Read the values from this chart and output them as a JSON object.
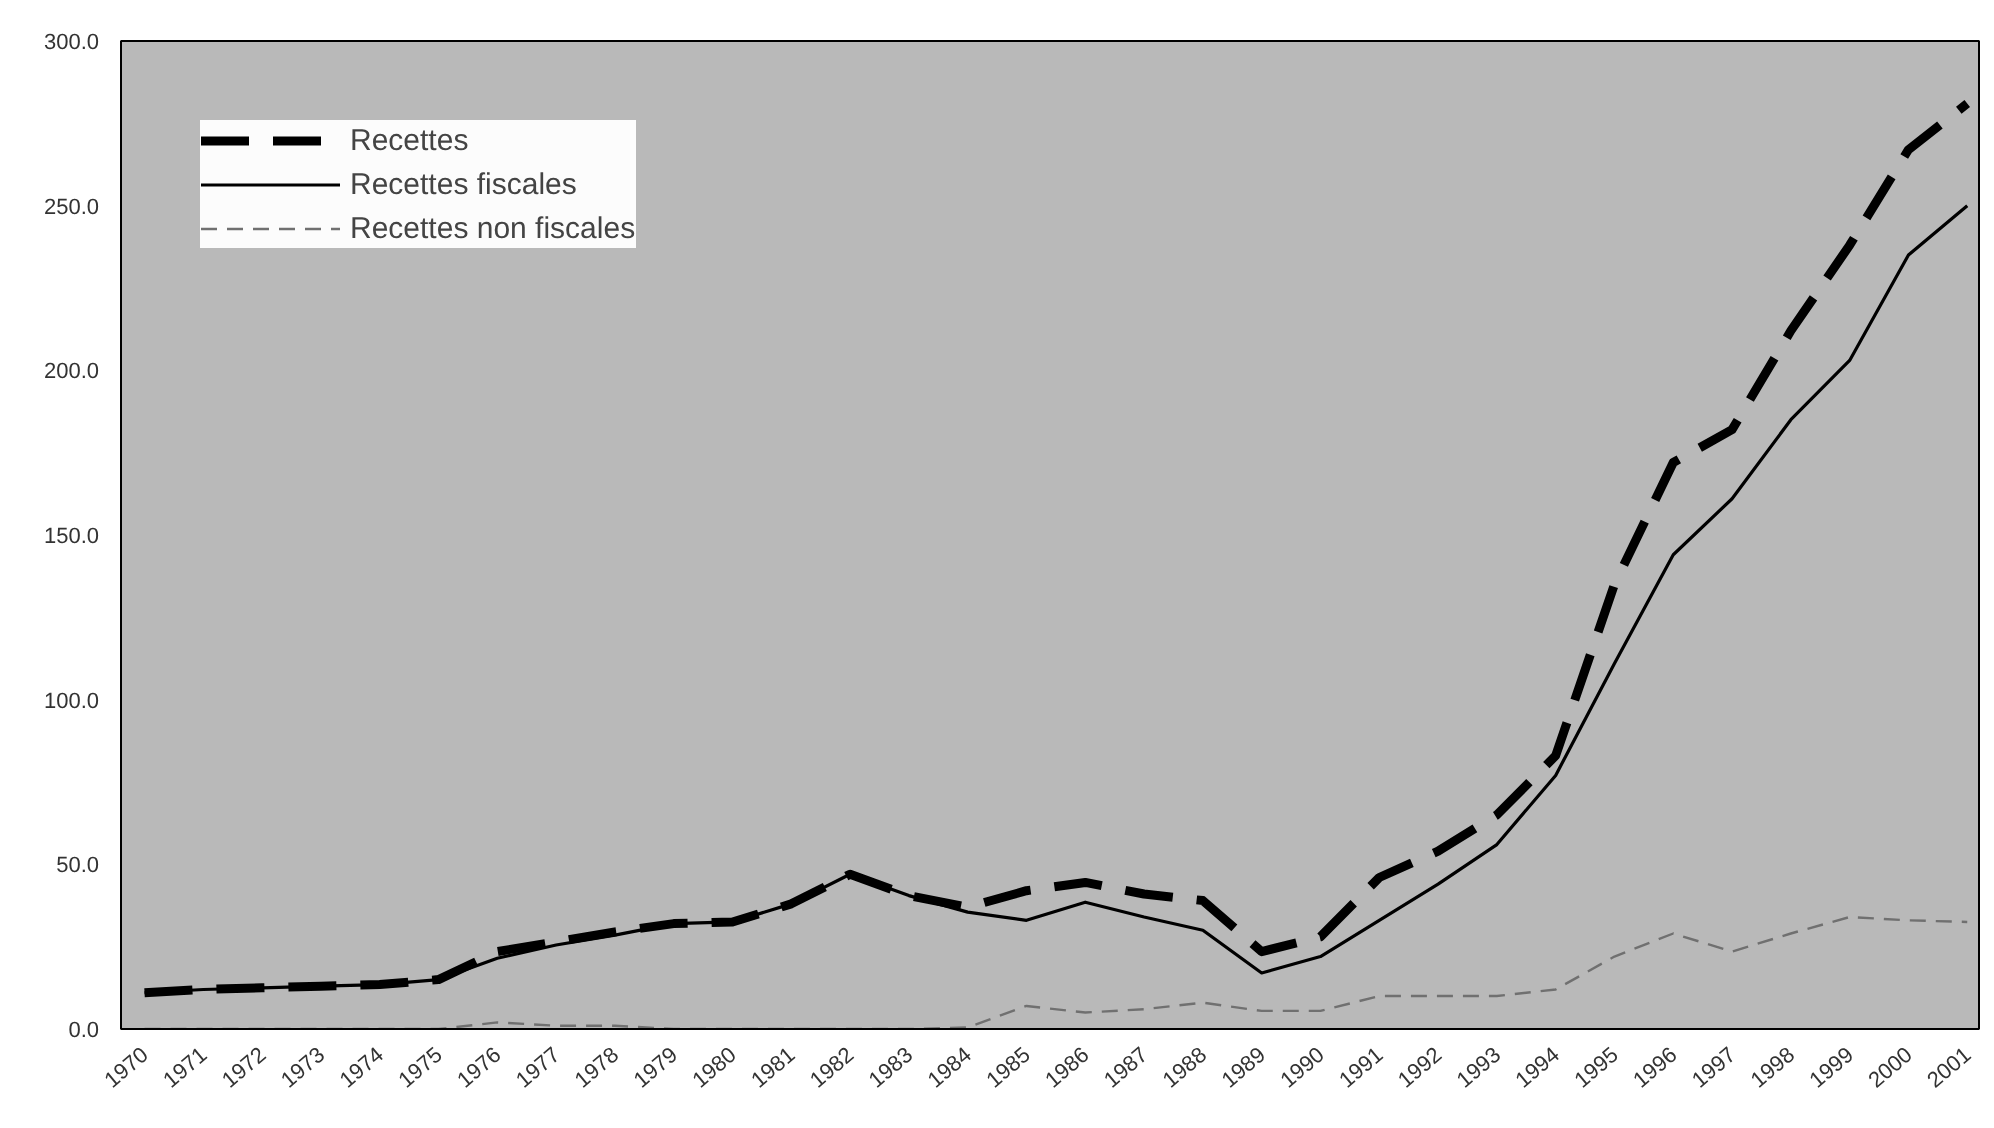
{
  "chart_data": {
    "type": "line",
    "categories": [
      "1970",
      "1971",
      "1972",
      "1973",
      "1974",
      "1975",
      "1976",
      "1977",
      "1978",
      "1979",
      "1980",
      "1981",
      "1982",
      "1983",
      "1984",
      "1985",
      "1986",
      "1987",
      "1988",
      "1989",
      "1990",
      "1991",
      "1992",
      "1993",
      "1994",
      "1995",
      "1996",
      "1997",
      "1998",
      "1999",
      "2000",
      "2001"
    ],
    "series": [
      {
        "name": "Recettes",
        "color": "#000000",
        "line_style": "dashed",
        "values": [
          11,
          12,
          12.5,
          13,
          13.5,
          15,
          23.5,
          26.5,
          29.5,
          32,
          32.5,
          38,
          47,
          40.5,
          37,
          42,
          44.5,
          41,
          39,
          23.5,
          28,
          46,
          54,
          65,
          83,
          135,
          172,
          182,
          212,
          238,
          267,
          281
        ]
      },
      {
        "name": "Recettes fiscales",
        "color": "#000000",
        "line_style": "solid",
        "values": [
          11,
          12,
          12.5,
          13,
          13.5,
          15,
          21.5,
          25.5,
          28.5,
          32,
          32.5,
          38,
          47,
          40.5,
          35.5,
          33,
          38.5,
          34,
          30,
          17,
          22,
          33,
          44,
          56,
          77,
          111,
          144,
          161,
          185,
          203,
          235,
          250
        ]
      },
      {
        "name": "Recettes non fiscales",
        "color": "#707070",
        "line_style": "dotted",
        "values": [
          0,
          0,
          0,
          0,
          0,
          0,
          2,
          1,
          1,
          0,
          0,
          0,
          0,
          0,
          0.5,
          7,
          5,
          6,
          8,
          5.5,
          5.5,
          10,
          10,
          10,
          12,
          22,
          29,
          23.5,
          29,
          34,
          33,
          32.5
        ]
      }
    ],
    "ylim": [
      0,
      300
    ],
    "yticks": [
      {
        "value": 0,
        "label": "0.0"
      },
      {
        "value": 50,
        "label": "50.0"
      },
      {
        "value": 100,
        "label": "100.0"
      },
      {
        "value": 150,
        "label": "150.0"
      },
      {
        "value": 200,
        "label": "200.0"
      },
      {
        "value": 250,
        "label": "250.0"
      },
      {
        "value": 300,
        "label": "300.0"
      }
    ],
    "grid": false,
    "legend": "top left"
  }
}
